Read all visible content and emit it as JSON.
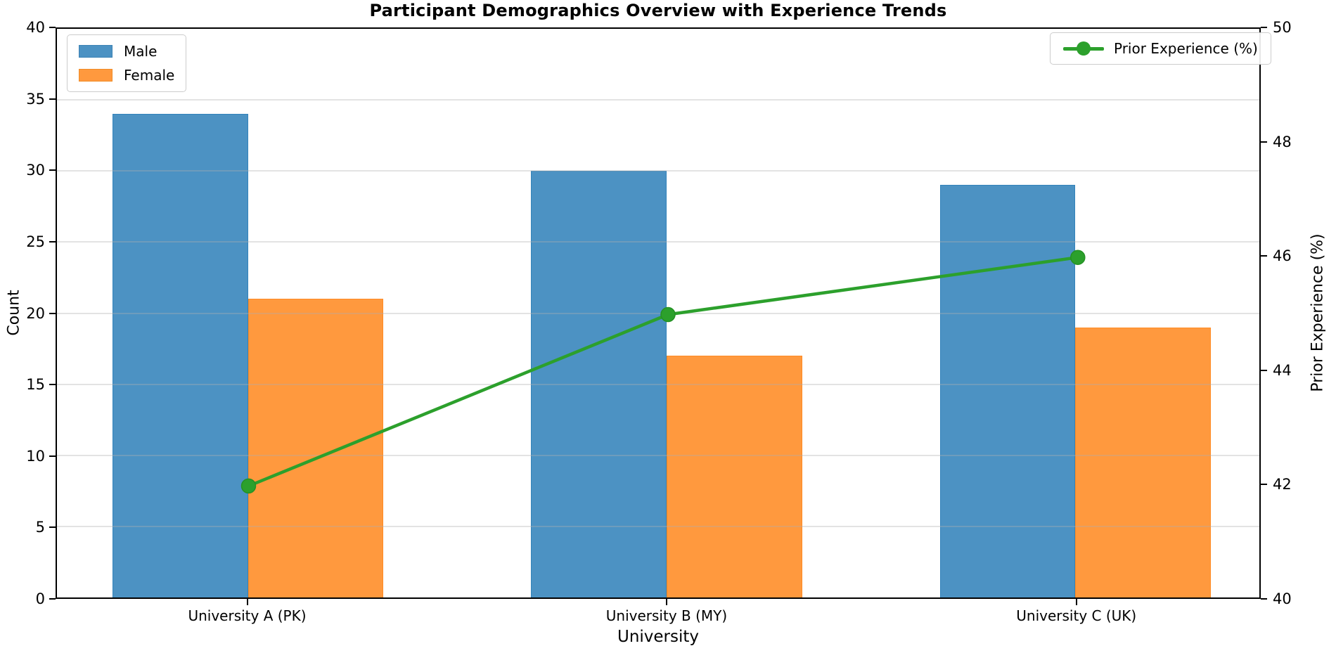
{
  "title": "Participant Demographics Overview with Experience Trends",
  "colors": {
    "male_bar": "#4c92c3",
    "female_bar": "#ff993e",
    "line": "#2ca02c",
    "grid": "#d9d9d9",
    "axis": "#000000"
  },
  "legend": {
    "male_label": "Male",
    "female_label": "Female",
    "line_label": "Prior Experience (%)"
  },
  "chart_data": {
    "type": "bar",
    "title": "Participant Demographics Overview with Experience Trends",
    "categories": [
      "University A (PK)",
      "University B (MY)",
      "University C (UK)"
    ],
    "series": [
      {
        "name": "Male",
        "type": "bar",
        "axis": "left",
        "color": "#4c92c3",
        "values": [
          34,
          30,
          29
        ]
      },
      {
        "name": "Female",
        "type": "bar",
        "axis": "left",
        "color": "#ff993e",
        "values": [
          21,
          17,
          19
        ]
      },
      {
        "name": "Prior Experience (%)",
        "type": "line",
        "axis": "right",
        "color": "#2ca02c",
        "values": [
          42,
          45,
          46
        ]
      }
    ],
    "xlabel": "University",
    "ylabel_left": "Count",
    "ylabel_right": "Prior Experience (%)",
    "ylim_left": [
      0,
      40
    ],
    "yticks_left": [
      0,
      5,
      10,
      15,
      20,
      25,
      30,
      35,
      40
    ],
    "ylim_right": [
      40,
      50
    ],
    "yticks_right": [
      40,
      42,
      44,
      46,
      48,
      50
    ],
    "grid": "horizontal, drawn above bars",
    "legend_positions": {
      "bars": "upper left",
      "line": "upper right"
    }
  }
}
